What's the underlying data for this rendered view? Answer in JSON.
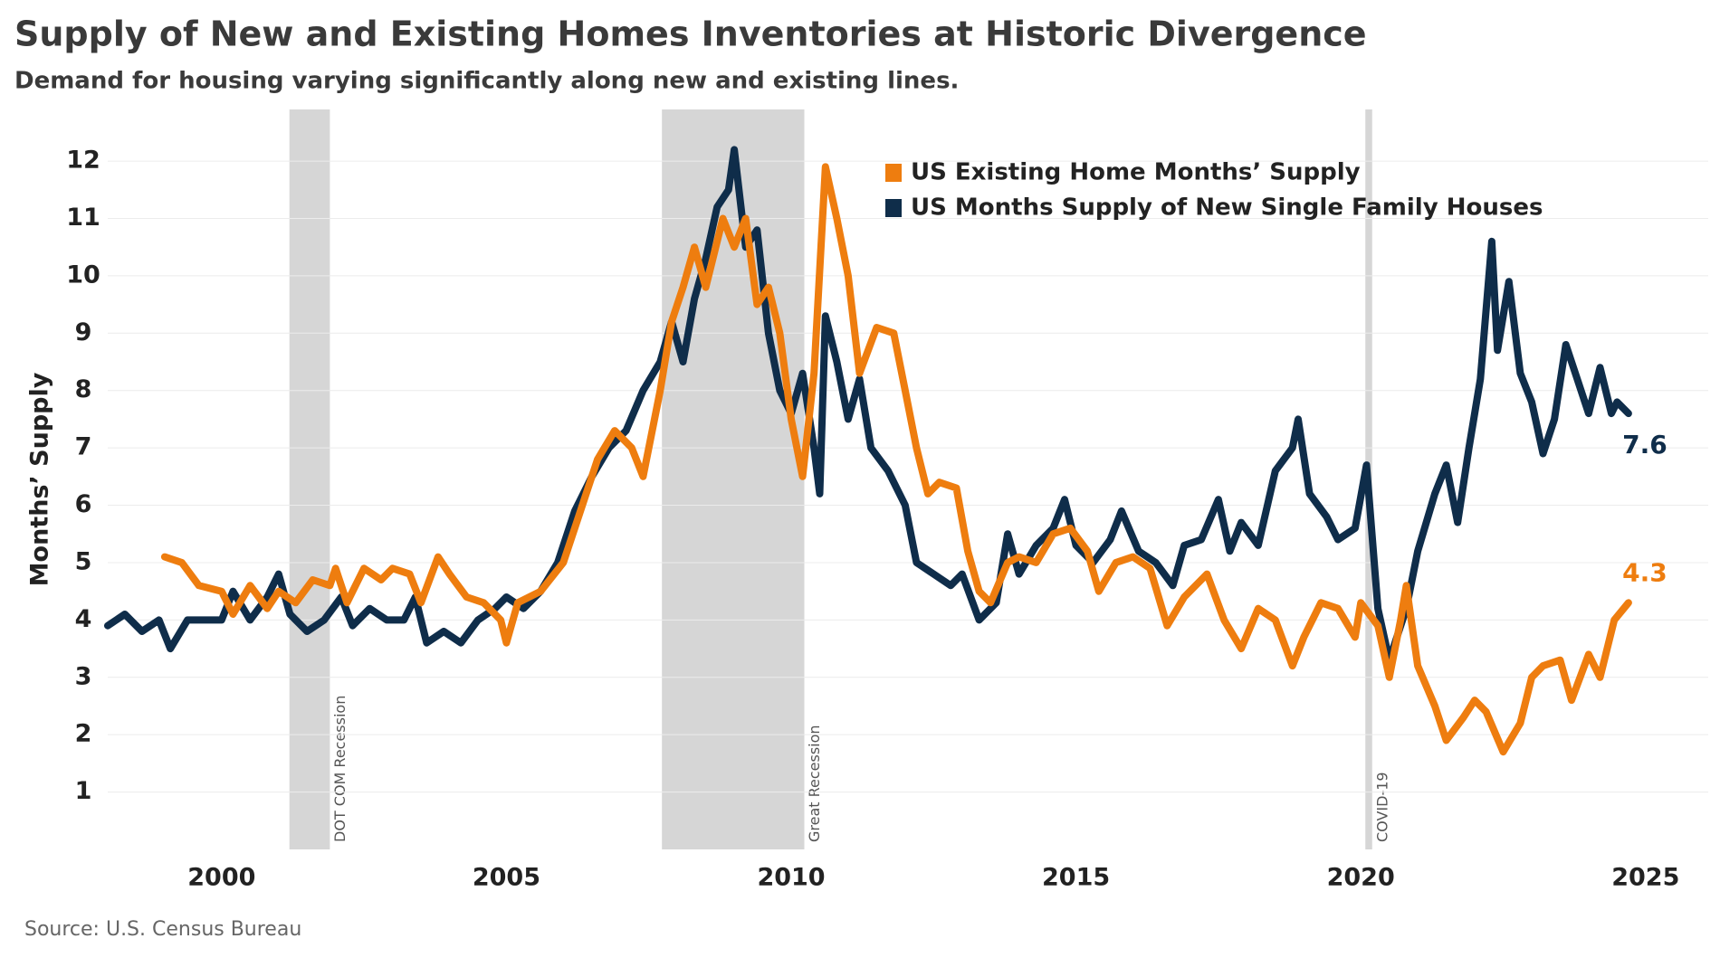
{
  "chart_data": {
    "type": "line",
    "title": "Supply of New and Existing Homes Inventories at Historic Divergence",
    "subtitle": "Demand for housing varying significantly along new and existing lines.",
    "y_label": "Months’ Supply",
    "source": "Source: U.S. Census Bureau",
    "xlim": [
      1998,
      2026.1
    ],
    "xticks": [
      2000,
      2005,
      2010,
      2015,
      2020,
      2025
    ],
    "ylim": [
      0,
      12.9
    ],
    "yticks": [
      1,
      2,
      3,
      4,
      5,
      6,
      7,
      8,
      9,
      10,
      11,
      12
    ],
    "grid": true,
    "shaded_regions": [
      {
        "label": "DOT COM Recession",
        "start": 2001.19,
        "end": 2001.9
      },
      {
        "label": "Great Recession",
        "start": 2007.73,
        "end": 2010.23
      },
      {
        "label": "COVID-19",
        "start": 2020.08,
        "end": 2020.2
      }
    ],
    "series": [
      {
        "name": "US Months Supply of New Single Family Houses",
        "color": "#0f2d4a",
        "x": [
          1998.0,
          1998.3,
          1998.6,
          1998.9,
          1999.1,
          1999.4,
          1999.7,
          2000.0,
          2000.2,
          2000.5,
          2000.8,
          2001.0,
          2001.2,
          2001.5,
          2001.8,
          2002.1,
          2002.3,
          2002.6,
          2002.9,
          2003.2,
          2003.4,
          2003.6,
          2003.9,
          2004.2,
          2004.5,
          2004.8,
          2005.0,
          2005.3,
          2005.6,
          2005.9,
          2006.2,
          2006.5,
          2006.8,
          2007.1,
          2007.4,
          2007.7,
          2007.9,
          2008.1,
          2008.3,
          2008.5,
          2008.7,
          2008.9,
          2009.0,
          2009.2,
          2009.4,
          2009.6,
          2009.8,
          2010.0,
          2010.2,
          2010.4,
          2010.5,
          2010.6,
          2010.8,
          2011.0,
          2011.2,
          2011.4,
          2011.7,
          2012.0,
          2012.2,
          2012.5,
          2012.8,
          2013.0,
          2013.3,
          2013.6,
          2013.8,
          2014.0,
          2014.3,
          2014.6,
          2014.8,
          2015.0,
          2015.3,
          2015.6,
          2015.8,
          2016.1,
          2016.4,
          2016.7,
          2016.9,
          2017.2,
          2017.5,
          2017.7,
          2017.9,
          2018.2,
          2018.5,
          2018.8,
          2018.9,
          2019.1,
          2019.4,
          2019.6,
          2019.9,
          2020.1,
          2020.3,
          2020.5,
          2020.8,
          2021.0,
          2021.3,
          2021.5,
          2021.7,
          2021.9,
          2022.1,
          2022.3,
          2022.4,
          2022.6,
          2022.8,
          2023.0,
          2023.2,
          2023.4,
          2023.6,
          2023.8,
          2024.0,
          2024.2,
          2024.4,
          2024.5,
          2024.7
        ],
        "values": [
          3.9,
          4.1,
          3.8,
          4.0,
          3.5,
          4.0,
          4.0,
          4.0,
          4.5,
          4.0,
          4.4,
          4.8,
          4.1,
          3.8,
          4.0,
          4.4,
          3.9,
          4.2,
          4.0,
          4.0,
          4.4,
          3.6,
          3.8,
          3.6,
          4.0,
          4.2,
          4.4,
          4.2,
          4.5,
          5.0,
          5.9,
          6.5,
          7.0,
          7.3,
          8.0,
          8.5,
          9.2,
          8.5,
          9.6,
          10.3,
          11.2,
          11.5,
          12.2,
          10.5,
          10.8,
          9.0,
          8.0,
          7.6,
          8.3,
          7.0,
          6.2,
          9.3,
          8.5,
          7.5,
          8.2,
          7.0,
          6.6,
          6.0,
          5.0,
          4.8,
          4.6,
          4.8,
          4.0,
          4.3,
          5.5,
          4.8,
          5.3,
          5.6,
          6.1,
          5.3,
          5.0,
          5.4,
          5.9,
          5.2,
          5.0,
          4.6,
          5.3,
          5.4,
          6.1,
          5.2,
          5.7,
          5.3,
          6.6,
          7.0,
          7.5,
          6.2,
          5.8,
          5.4,
          5.6,
          6.7,
          4.2,
          3.3,
          4.2,
          5.2,
          6.2,
          6.7,
          5.7,
          7.0,
          8.2,
          10.6,
          8.7,
          9.9,
          8.3,
          7.8,
          6.9,
          7.5,
          8.8,
          8.2,
          7.6,
          8.4,
          7.6,
          7.8,
          7.6
        ]
      },
      {
        "name": "US Existing Home Months’ Supply",
        "color": "#ee7d0f",
        "x": [
          1999.0,
          1999.3,
          1999.6,
          2000.0,
          2000.2,
          2000.5,
          2000.8,
          2001.0,
          2001.3,
          2001.6,
          2001.9,
          2002.0,
          2002.2,
          2002.5,
          2002.8,
          2003.0,
          2003.3,
          2003.5,
          2003.8,
          2004.0,
          2004.3,
          2004.6,
          2004.9,
          2005.0,
          2005.2,
          2005.6,
          2006.0,
          2006.3,
          2006.6,
          2006.9,
          2007.2,
          2007.4,
          2007.7,
          2007.9,
          2008.1,
          2008.3,
          2008.5,
          2008.8,
          2009.0,
          2009.2,
          2009.4,
          2009.6,
          2009.8,
          2010.0,
          2010.2,
          2010.4,
          2010.6,
          2010.8,
          2011.0,
          2011.2,
          2011.5,
          2011.8,
          2012.0,
          2012.2,
          2012.4,
          2012.6,
          2012.9,
          2013.1,
          2013.3,
          2013.5,
          2013.8,
          2014.0,
          2014.3,
          2014.6,
          2014.9,
          2015.2,
          2015.4,
          2015.7,
          2016.0,
          2016.3,
          2016.6,
          2016.9,
          2017.3,
          2017.6,
          2017.9,
          2018.2,
          2018.5,
          2018.8,
          2019.0,
          2019.3,
          2019.6,
          2019.9,
          2020.0,
          2020.3,
          2020.5,
          2020.7,
          2020.8,
          2021.0,
          2021.3,
          2021.5,
          2021.8,
          2022.0,
          2022.2,
          2022.5,
          2022.8,
          2023.0,
          2023.2,
          2023.5,
          2023.7,
          2024.0,
          2024.2,
          2024.45,
          2024.7
        ],
        "values": [
          5.1,
          5.0,
          4.6,
          4.5,
          4.1,
          4.6,
          4.2,
          4.5,
          4.3,
          4.7,
          4.6,
          4.9,
          4.3,
          4.9,
          4.7,
          4.9,
          4.8,
          4.3,
          5.1,
          4.8,
          4.4,
          4.3,
          4.0,
          3.6,
          4.3,
          4.5,
          5.0,
          5.9,
          6.8,
          7.3,
          7.0,
          6.5,
          8.0,
          9.2,
          9.8,
          10.5,
          9.8,
          11.0,
          10.5,
          11.0,
          9.5,
          9.8,
          9.0,
          7.5,
          6.5,
          8.3,
          11.9,
          11.0,
          10.0,
          8.3,
          9.1,
          9.0,
          8.0,
          7.0,
          6.2,
          6.4,
          6.3,
          5.2,
          4.5,
          4.3,
          5.0,
          5.1,
          5.0,
          5.5,
          5.6,
          5.2,
          4.5,
          5.0,
          5.1,
          4.9,
          3.9,
          4.4,
          4.8,
          4.0,
          3.5,
          4.2,
          4.0,
          3.2,
          3.7,
          4.3,
          4.2,
          3.7,
          4.3,
          3.9,
          3.0,
          4.0,
          4.6,
          3.2,
          2.5,
          1.9,
          2.3,
          2.6,
          2.4,
          1.7,
          2.2,
          3.0,
          3.2,
          3.3,
          2.6,
          3.4,
          3.0,
          4.0,
          4.3
        ]
      }
    ]
  }
}
